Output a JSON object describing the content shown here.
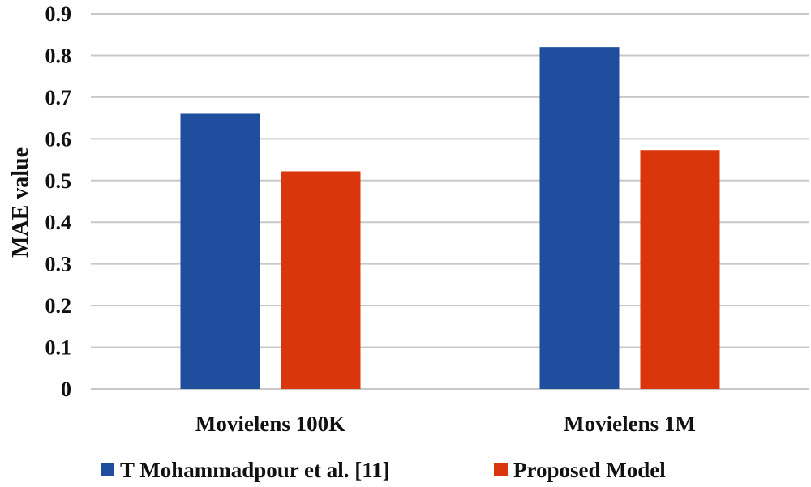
{
  "chart_data": {
    "type": "bar",
    "title": "",
    "xlabel": "",
    "ylabel": "MAE value",
    "ylim": [
      0,
      0.9
    ],
    "yticks": [
      "0",
      "0.1",
      "0.2",
      "0.3",
      "0.4",
      "0.5",
      "0.6",
      "0.7",
      "0.8",
      "0.9"
    ],
    "grid": true,
    "legend_position": "bottom",
    "categories": [
      "Movielens 100K",
      "Movielens 1M"
    ],
    "series": [
      {
        "name": "T Mohammadpour et al. [11]",
        "color": "#1f4e9e",
        "values": [
          0.66,
          0.82
        ]
      },
      {
        "name": "Proposed Model",
        "color": "#d9360d",
        "values": [
          0.522,
          0.573
        ]
      }
    ]
  }
}
